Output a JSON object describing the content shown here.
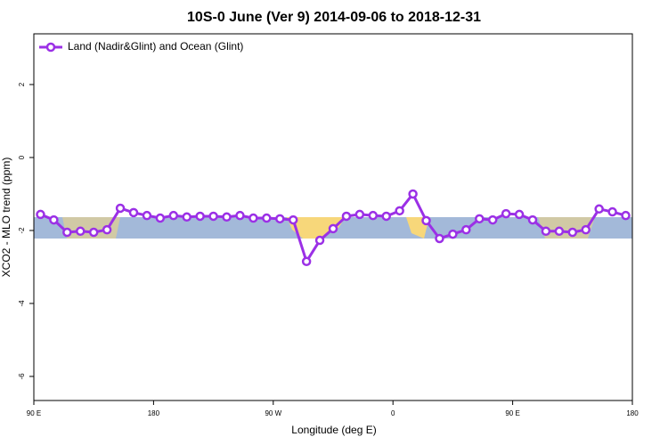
{
  "chart_data": {
    "type": "line",
    "title": "10S-0 June (Ver 9)   2014-09-06 to 2018-12-31",
    "x_label": "Longitude (deg E)",
    "y_label": "XCO2 - MLO trend (ppm)",
    "x": [
      95,
      105,
      115,
      125,
      135,
      145,
      155,
      165,
      175,
      185,
      195,
      205,
      215,
      225,
      235,
      245,
      255,
      265,
      275,
      285,
      295,
      305,
      315,
      325,
      335,
      345,
      355,
      365,
      375,
      385,
      395,
      405,
      415,
      425,
      435,
      445,
      455,
      465,
      475,
      485,
      495,
      505,
      515,
      525,
      535
    ],
    "series": [
      {
        "name": "Land (Nadir&Glint) and Ocean (Glint)",
        "color": "#9b30e6",
        "values": [
          -1.56,
          -1.71,
          -2.05,
          -2.02,
          -2.05,
          -1.98,
          -1.39,
          -1.51,
          -1.59,
          -1.66,
          -1.59,
          -1.63,
          -1.61,
          -1.61,
          -1.63,
          -1.59,
          -1.66,
          -1.66,
          -1.68,
          -1.71,
          -2.85,
          -2.27,
          -1.95,
          -1.61,
          -1.56,
          -1.59,
          -1.61,
          -1.46,
          -1.0,
          -1.73,
          -2.22,
          -2.1,
          -1.98,
          -1.68,
          -1.71,
          -1.54,
          -1.56,
          -1.71,
          -2.02,
          -2.02,
          -2.05,
          -1.98,
          -1.41,
          -1.49,
          -1.59
        ]
      }
    ],
    "xlim": [
      90,
      540
    ],
    "xticks": [
      {
        "value": 90,
        "label": "90 E"
      },
      180,
      {
        "value": 270,
        "label": "90 W"
      },
      {
        "value": 360,
        "label": "0"
      },
      {
        "value": 450,
        "label": "90 E"
      },
      {
        "value": 540,
        "label": "180"
      }
    ],
    "ylim": [
      -6.66,
      3.39
    ],
    "yticks": [
      2,
      0,
      -2,
      -4,
      -6
    ],
    "legend": "top-left"
  }
}
